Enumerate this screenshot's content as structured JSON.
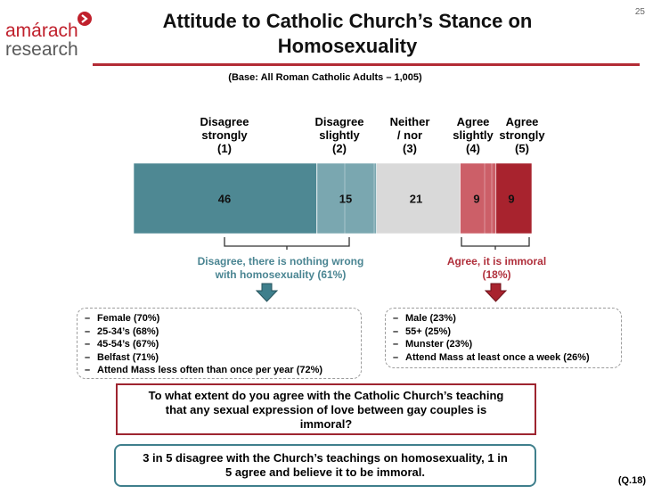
{
  "logo": {
    "line1": "amárach",
    "line2": "research"
  },
  "page_number": "25",
  "title": "Attitude to Catholic Church’s Stance on Homosexuality",
  "base": "(Base:  All Roman Catholic Adults – 1,005)",
  "colors": {
    "disagree_strongly": "#4e8893",
    "disagree_slightly": "#7aa7b0",
    "neither": "#d9d9d9",
    "agree_slightly": "#cc5f68",
    "agree_strongly": "#a8232e",
    "teal_text": "#4a8592",
    "red_text": "#b02f3b"
  },
  "chart_data": {
    "type": "bar",
    "orientation": "horizontal-stacked",
    "categories": [
      [
        "Disagree",
        "strongly",
        "(1)"
      ],
      [
        "Disagree",
        "slightly",
        "(2)"
      ],
      [
        "Neither",
        "/ nor",
        "(3)"
      ],
      [
        "Agree",
        "slightly",
        "(4)"
      ],
      [
        "Agree",
        "strongly",
        "(5)"
      ]
    ],
    "values": [
      46,
      15,
      21,
      9,
      9
    ],
    "data_labels": [
      "46",
      "15",
      "21",
      "9",
      "9"
    ]
  },
  "disagree_summary": [
    "Disagree, there is nothing wrong",
    "with homosexuality (61%)"
  ],
  "agree_summary": [
    "Agree, it is immoral",
    "(18%)"
  ],
  "left_bullets": [
    "Female (70%)",
    "25-34’s (68%)",
    "45-54’s (67%)",
    "Belfast (71%)",
    "Attend Mass less often than once per year (72%)"
  ],
  "right_bullets": [
    "Male (23%)",
    "55+ (25%)",
    "Munster (23%)",
    "Attend Mass at least once a week (26%)"
  ],
  "bullet_dash": "–",
  "question": [
    "To what extent do you agree with the Catholic Church’s teaching",
    "that any sexual expression of love between gay couples is",
    "immoral?"
  ],
  "conclusion": [
    "3 in 5 disagree with the Church’s teachings on homosexuality, 1 in",
    "5 agree and believe it to be immoral."
  ],
  "question_ref": "(Q.18)"
}
